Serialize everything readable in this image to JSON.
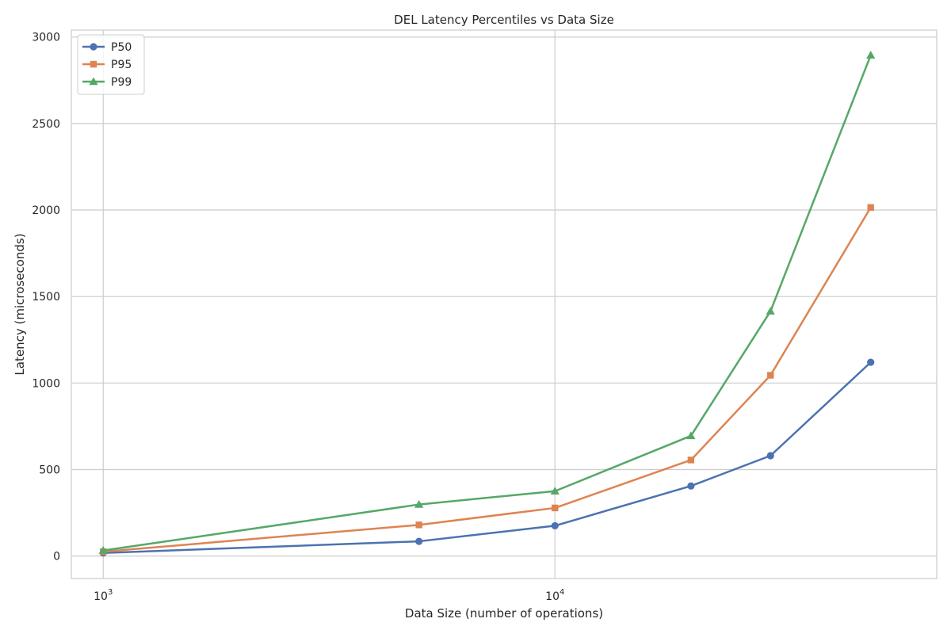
{
  "chart_data": {
    "type": "line",
    "title": "DEL Latency Percentiles vs Data Size",
    "xlabel": "Data Size (number of operations)",
    "ylabel": "Latency (microseconds)",
    "xscale": "log",
    "xlim": [
      850,
      70000
    ],
    "ylim": [
      -130,
      3040
    ],
    "x_ticks": [
      {
        "value": 1000,
        "base": "10",
        "exp": "3"
      },
      {
        "value": 10000,
        "base": "10",
        "exp": "4"
      }
    ],
    "y_ticks": [
      0,
      500,
      1000,
      1500,
      2000,
      2500,
      3000
    ],
    "grid": true,
    "legend_position": "top-left",
    "x": [
      1000,
      5000,
      10000,
      20000,
      30000,
      50000
    ],
    "series": [
      {
        "name": "P50",
        "color": "#4c72b0",
        "marker": "circle",
        "values": [
          18,
          85,
          175,
          405,
          580,
          1120
        ]
      },
      {
        "name": "P95",
        "color": "#dd8452",
        "marker": "square",
        "values": [
          25,
          180,
          278,
          555,
          1045,
          2015
        ]
      },
      {
        "name": "P99",
        "color": "#55a868",
        "marker": "triangle",
        "values": [
          32,
          298,
          375,
          695,
          1415,
          2895
        ]
      }
    ]
  }
}
